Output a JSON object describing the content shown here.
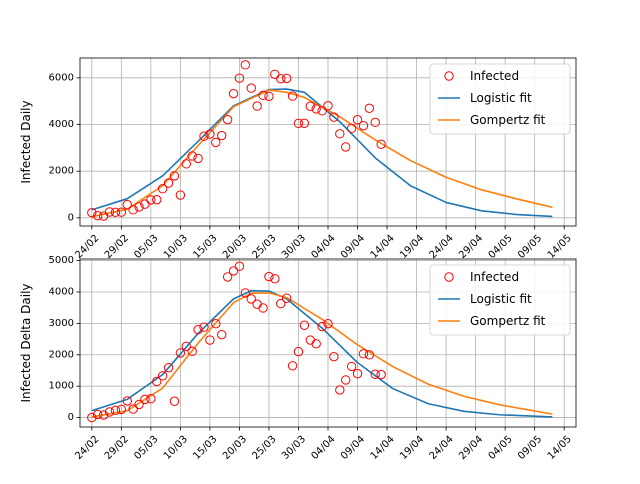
{
  "colors": {
    "observed": "#ff0000",
    "logistic": "#1f77b4",
    "gompertz": "#ff7f0e"
  },
  "chart_data": [
    {
      "type": "line",
      "ylabel": "Infected Daily",
      "legend": {
        "placement": "top-right",
        "entries": [
          "Infected",
          "Logistic fit",
          "Gompertz fit"
        ]
      },
      "x_ticks": [
        "24/02",
        "29/02",
        "05/03",
        "10/03",
        "15/03",
        "20/03",
        "25/03",
        "30/03",
        "04/04",
        "09/04",
        "14/04",
        "19/04",
        "24/04",
        "29/04",
        "04/05",
        "09/05",
        "14/05"
      ],
      "y_ticks": [
        "0",
        "2000",
        "4000",
        "6000"
      ],
      "xlim": [
        "2020-02-22",
        "2020-05-16"
      ],
      "ylim": [
        -350,
        6850
      ],
      "grid": true,
      "series": [
        {
          "name": "Infected",
          "style": "markers",
          "x": [
            "2020-02-24",
            "2020-02-25",
            "2020-02-26",
            "2020-02-27",
            "2020-02-28",
            "2020-02-29",
            "2020-03-01",
            "2020-03-02",
            "2020-03-03",
            "2020-03-04",
            "2020-03-05",
            "2020-03-06",
            "2020-03-07",
            "2020-03-08",
            "2020-03-09",
            "2020-03-10",
            "2020-03-11",
            "2020-03-12",
            "2020-03-13",
            "2020-03-14",
            "2020-03-15",
            "2020-03-16",
            "2020-03-17",
            "2020-03-18",
            "2020-03-19",
            "2020-03-20",
            "2020-03-21",
            "2020-03-22",
            "2020-03-23",
            "2020-03-24",
            "2020-03-25",
            "2020-03-26",
            "2020-03-27",
            "2020-03-28",
            "2020-03-29",
            "2020-03-30",
            "2020-03-31",
            "2020-04-01",
            "2020-04-02",
            "2020-04-03",
            "2020-04-04",
            "2020-04-05",
            "2020-04-06",
            "2020-04-07",
            "2020-04-08",
            "2020-04-09",
            "2020-04-10",
            "2020-04-11",
            "2020-04-12",
            "2020-04-13"
          ],
          "values": [
            221,
            93,
            78,
            250,
            238,
            240,
            566,
            342,
            466,
            587,
            769,
            778,
            1247,
            1492,
            1797,
            977,
            2313,
            2651,
            2547,
            3497,
            3590,
            3233,
            3526,
            4207,
            5322,
            5986,
            6557,
            5560,
            4789,
            5249,
            5210,
            6153,
            5959,
            5974,
            5217,
            4050,
            4053,
            4782,
            4668,
            4585,
            4805,
            4316,
            3599,
            3039,
            3836,
            4204,
            3951,
            4694,
            4092,
            3153
          ]
        },
        {
          "name": "Logistic fit",
          "style": "line",
          "x": [
            "2020-02-24",
            "2020-03-01",
            "2020-03-07",
            "2020-03-13",
            "2020-03-19",
            "2020-03-25",
            "2020-03-28",
            "2020-03-31",
            "2020-04-06",
            "2020-04-12",
            "2020-04-18",
            "2020-04-24",
            "2020-04-30",
            "2020-05-06",
            "2020-05-12"
          ],
          "values": [
            340,
            820,
            1800,
            3280,
            4800,
            5500,
            5520,
            5380,
            4120,
            2570,
            1370,
            660,
            300,
            140,
            60
          ]
        },
        {
          "name": "Gompertz fit",
          "style": "line",
          "x": [
            "2020-02-24",
            "2020-03-01",
            "2020-03-07",
            "2020-03-13",
            "2020-03-19",
            "2020-03-25",
            "2020-03-28",
            "2020-03-31",
            "2020-04-06",
            "2020-04-12",
            "2020-04-18",
            "2020-04-24",
            "2020-04-30",
            "2020-05-06",
            "2020-05-12"
          ],
          "values": [
            50,
            370,
            1380,
            3100,
            4760,
            5480,
            5380,
            5160,
            4330,
            3340,
            2450,
            1740,
            1200,
            810,
            450
          ]
        }
      ]
    },
    {
      "type": "line",
      "ylabel": "Infected Delta Daily",
      "legend": {
        "placement": "top-right",
        "entries": [
          "Infected",
          "Logistic fit",
          "Gompertz fit"
        ]
      },
      "x_ticks": [
        "24/02",
        "29/02",
        "05/03",
        "10/03",
        "15/03",
        "20/03",
        "25/03",
        "30/03",
        "04/04",
        "09/04",
        "14/04",
        "19/04",
        "24/04",
        "29/04",
        "04/05",
        "09/05",
        "14/05"
      ],
      "y_ticks": [
        "0",
        "1000",
        "2000",
        "3000",
        "4000",
        "5000"
      ],
      "xlim": [
        "2020-02-22",
        "2020-05-16"
      ],
      "ylim": [
        -300,
        5050
      ],
      "grid": true,
      "series": [
        {
          "name": "Infected",
          "style": "markers",
          "x": [
            "2020-02-24",
            "2020-02-25",
            "2020-02-26",
            "2020-02-27",
            "2020-02-28",
            "2020-02-29",
            "2020-03-01",
            "2020-03-02",
            "2020-03-03",
            "2020-03-04",
            "2020-03-05",
            "2020-03-06",
            "2020-03-07",
            "2020-03-08",
            "2020-03-09",
            "2020-03-10",
            "2020-03-11",
            "2020-03-12",
            "2020-03-13",
            "2020-03-14",
            "2020-03-15",
            "2020-03-16",
            "2020-03-17",
            "2020-03-18",
            "2020-03-19",
            "2020-03-20",
            "2020-03-21",
            "2020-03-22",
            "2020-03-23",
            "2020-03-24",
            "2020-03-25",
            "2020-03-26",
            "2020-03-27",
            "2020-03-28",
            "2020-03-29",
            "2020-03-30",
            "2020-03-31",
            "2020-04-01",
            "2020-04-02",
            "2020-04-03",
            "2020-04-04",
            "2020-04-05",
            "2020-04-06",
            "2020-04-07",
            "2020-04-08",
            "2020-04-09",
            "2020-04-10",
            "2020-04-11",
            "2020-04-12",
            "2020-04-13"
          ],
          "values": [
            0,
            100,
            80,
            180,
            230,
            260,
            530,
            270,
            420,
            580,
            600,
            1150,
            1330,
            1590,
            520,
            2060,
            2270,
            2110,
            2800,
            2880,
            2470,
            2990,
            2640,
            4480,
            4670,
            4820,
            3970,
            3780,
            3610,
            3490,
            4490,
            4420,
            3630,
            3800,
            1650,
            2100,
            2940,
            2470,
            2350,
            2900,
            2990,
            1940,
            880,
            1200,
            1630,
            1400,
            2030,
            2000,
            1380,
            1370
          ]
        },
        {
          "name": "Logistic fit",
          "style": "line",
          "x": [
            "2020-02-24",
            "2020-03-01",
            "2020-03-07",
            "2020-03-13",
            "2020-03-19",
            "2020-03-22",
            "2020-03-25",
            "2020-03-28",
            "2020-04-03",
            "2020-04-09",
            "2020-04-15",
            "2020-04-21",
            "2020-04-27",
            "2020-05-03",
            "2020-05-12"
          ],
          "values": [
            220,
            580,
            1370,
            2680,
            3780,
            4040,
            4030,
            3780,
            2850,
            1750,
            920,
            440,
            200,
            90,
            20
          ]
        },
        {
          "name": "Gompertz fit",
          "style": "line",
          "x": [
            "2020-02-24",
            "2020-03-01",
            "2020-03-07",
            "2020-03-13",
            "2020-03-19",
            "2020-03-22",
            "2020-03-25",
            "2020-03-28",
            "2020-04-03",
            "2020-04-09",
            "2020-04-15",
            "2020-04-21",
            "2020-04-27",
            "2020-05-03",
            "2020-05-12"
          ],
          "values": [
            20,
            220,
            940,
            2370,
            3660,
            3960,
            3970,
            3820,
            3130,
            2320,
            1620,
            1060,
            680,
            410,
            110
          ]
        }
      ]
    }
  ]
}
